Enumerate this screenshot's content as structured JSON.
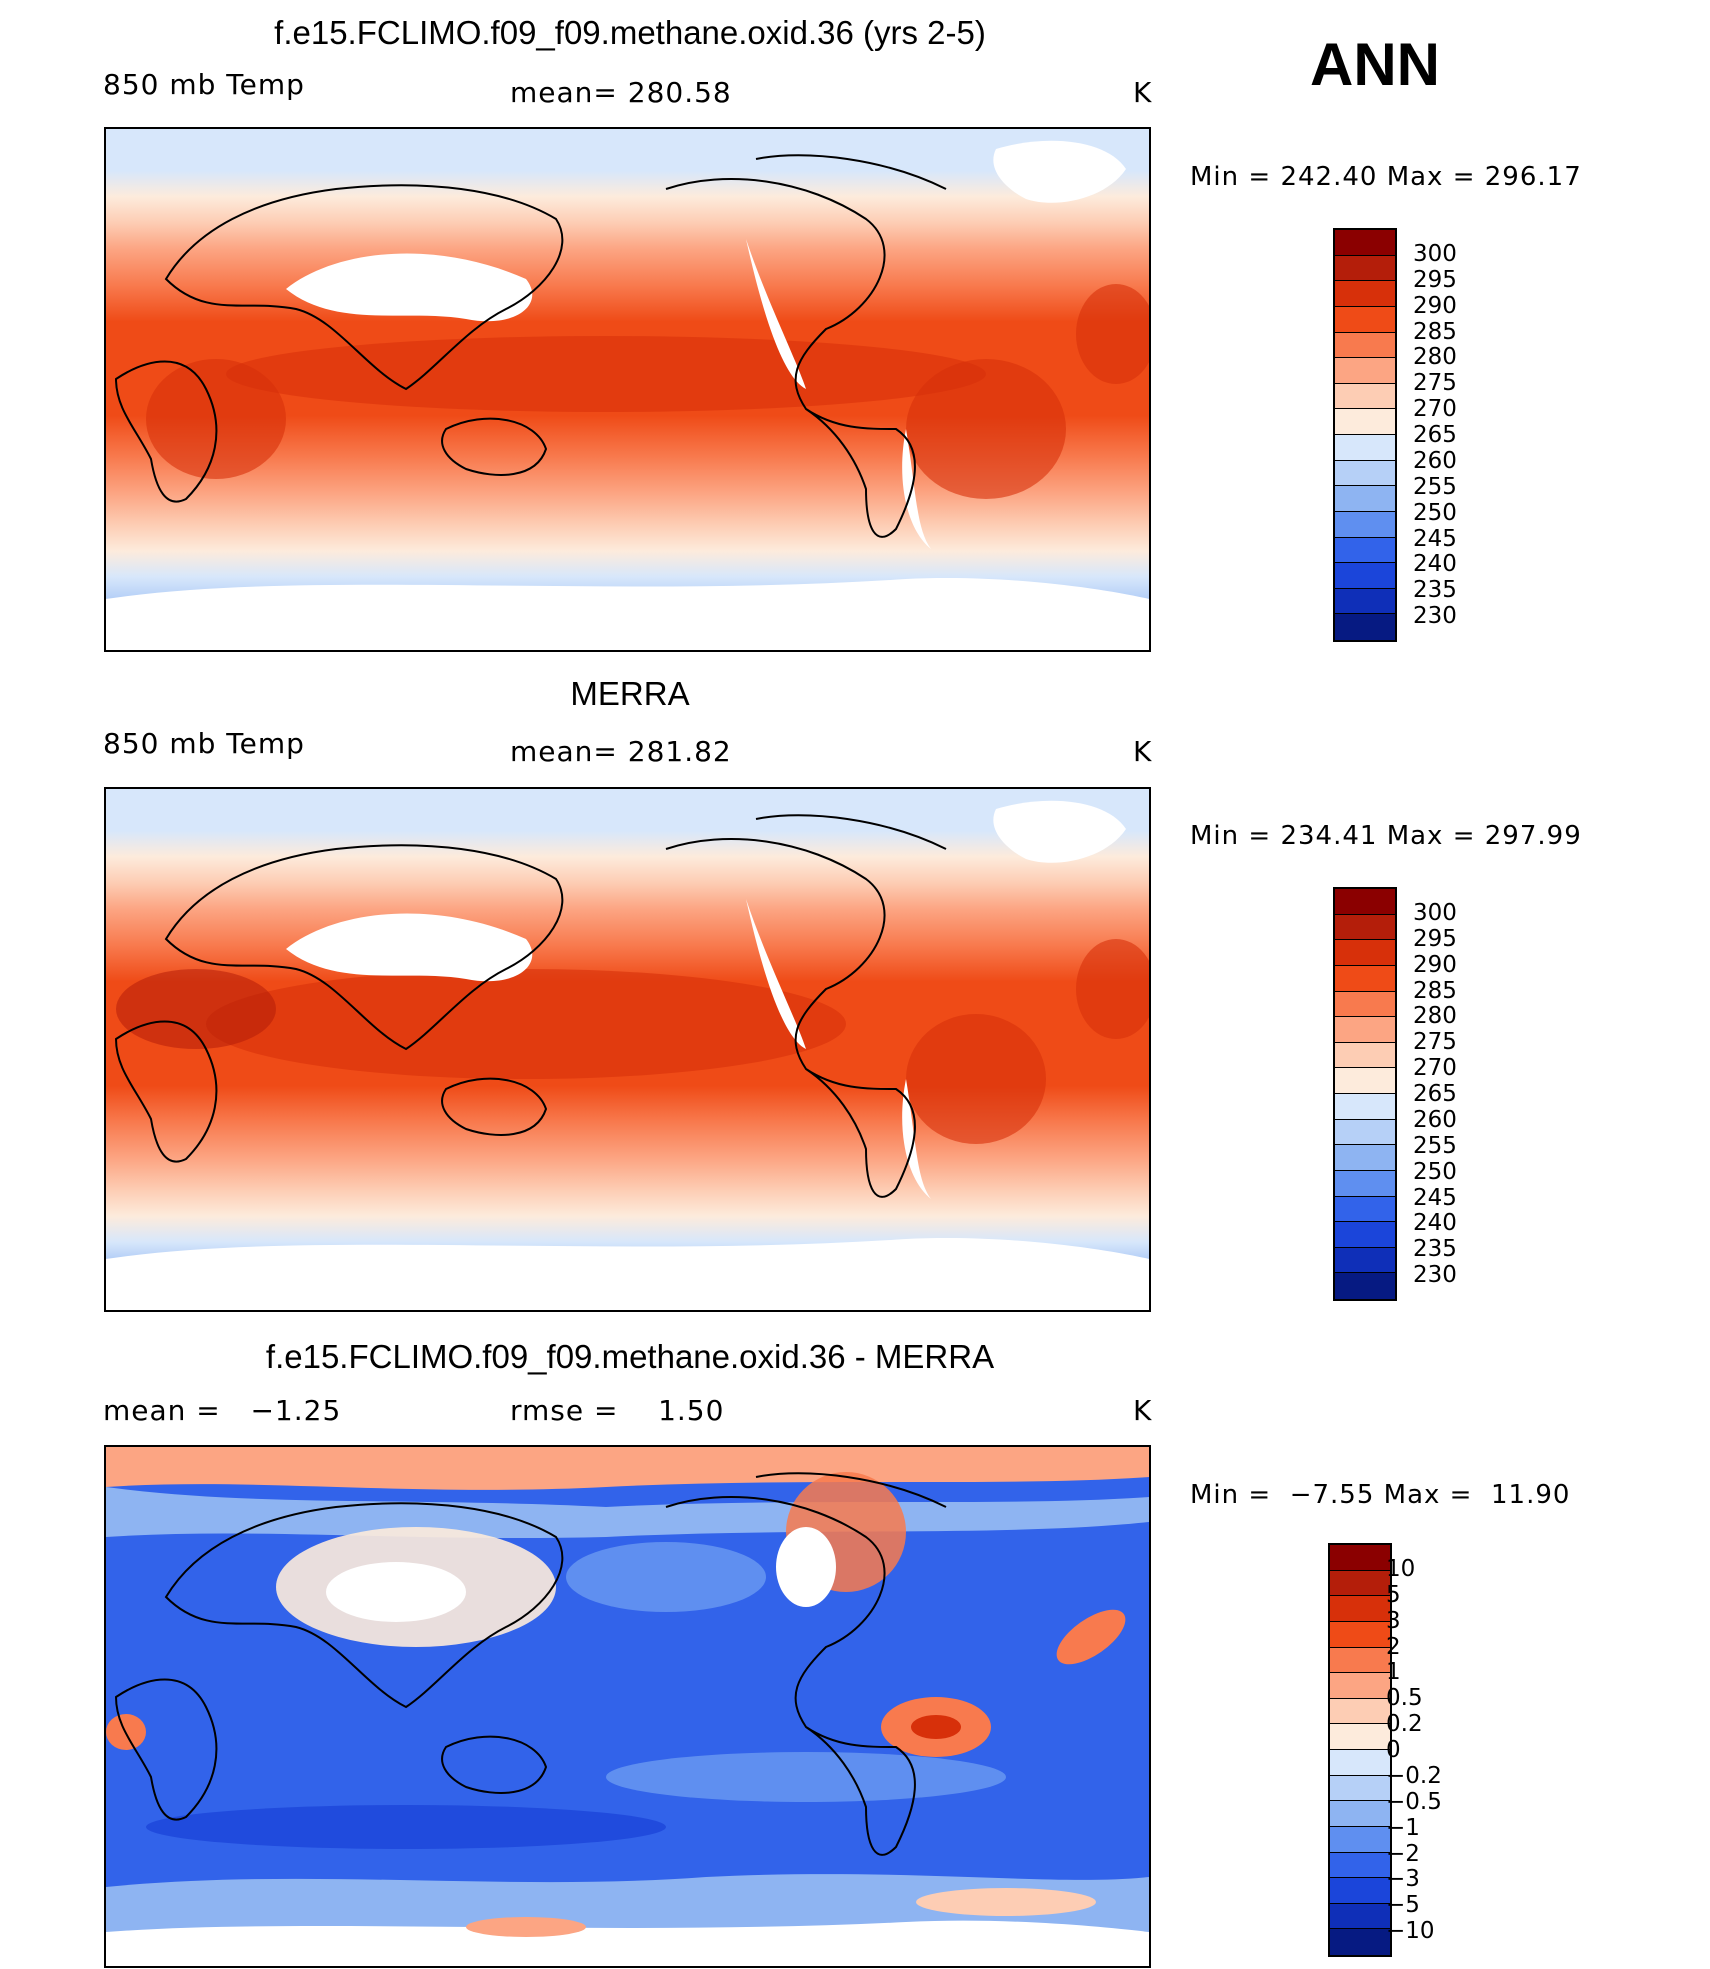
{
  "season": "ANN",
  "panels": [
    {
      "title": "f.e15.FCLIMO.f09_f09.methane.oxid.36 (yrs 2-5)",
      "left_label": "850 mb Temp",
      "center_label": "mean= 280.58",
      "units": "K",
      "minmax": "Min = 242.40 Max = 296.17",
      "colorbar": {
        "labels": [
          "300",
          "295",
          "290",
          "285",
          "280",
          "275",
          "270",
          "265",
          "260",
          "255",
          "250",
          "245",
          "240",
          "235",
          "230"
        ],
        "colors": [
          "#8b0000",
          "#b41e0a",
          "#d7300a",
          "#ef4b17",
          "#f87a4e",
          "#fca583",
          "#fdcdb4",
          "#fdebdc",
          "#d7e7fb",
          "#b6d0f7",
          "#8eb4f2",
          "#5f8ff0",
          "#3263ea",
          "#1b45da",
          "#0f2fb8",
          "#061a82"
        ]
      }
    },
    {
      "title": "MERRA",
      "left_label": "850 mb Temp",
      "center_label": "mean= 281.82",
      "units": "K",
      "minmax": "Min = 234.41 Max = 297.99",
      "colorbar": {
        "labels": [
          "300",
          "295",
          "290",
          "285",
          "280",
          "275",
          "270",
          "265",
          "260",
          "255",
          "250",
          "245",
          "240",
          "235",
          "230"
        ],
        "colors": [
          "#8b0000",
          "#b41e0a",
          "#d7300a",
          "#ef4b17",
          "#f87a4e",
          "#fca583",
          "#fdcdb4",
          "#fdebdc",
          "#d7e7fb",
          "#b6d0f7",
          "#8eb4f2",
          "#5f8ff0",
          "#3263ea",
          "#1b45da",
          "#0f2fb8",
          "#061a82"
        ]
      }
    },
    {
      "title": "f.e15.FCLIMO.f09_f09.methane.oxid.36 - MERRA",
      "left_label": "mean =   −1.25",
      "center_label": "rmse =    1.50",
      "units": "K",
      "minmax": "Min =  −7.55 Max =  11.90",
      "colorbar": {
        "labels": [
          "10",
          "5",
          "3",
          "2",
          "1",
          "0.5",
          "0.2",
          "0",
          "−0.2",
          "−0.5",
          "−1",
          "−2",
          "−3",
          "−5",
          "−10"
        ],
        "colors": [
          "#8b0000",
          "#b41e0a",
          "#d7300a",
          "#ef4b17",
          "#f87a4e",
          "#fca583",
          "#fdcdb4",
          "#fdebdc",
          "#d7e7fb",
          "#b6d0f7",
          "#8eb4f2",
          "#5f8ff0",
          "#3263ea",
          "#1b45da",
          "#0f2fb8",
          "#061a82"
        ]
      }
    }
  ]
}
